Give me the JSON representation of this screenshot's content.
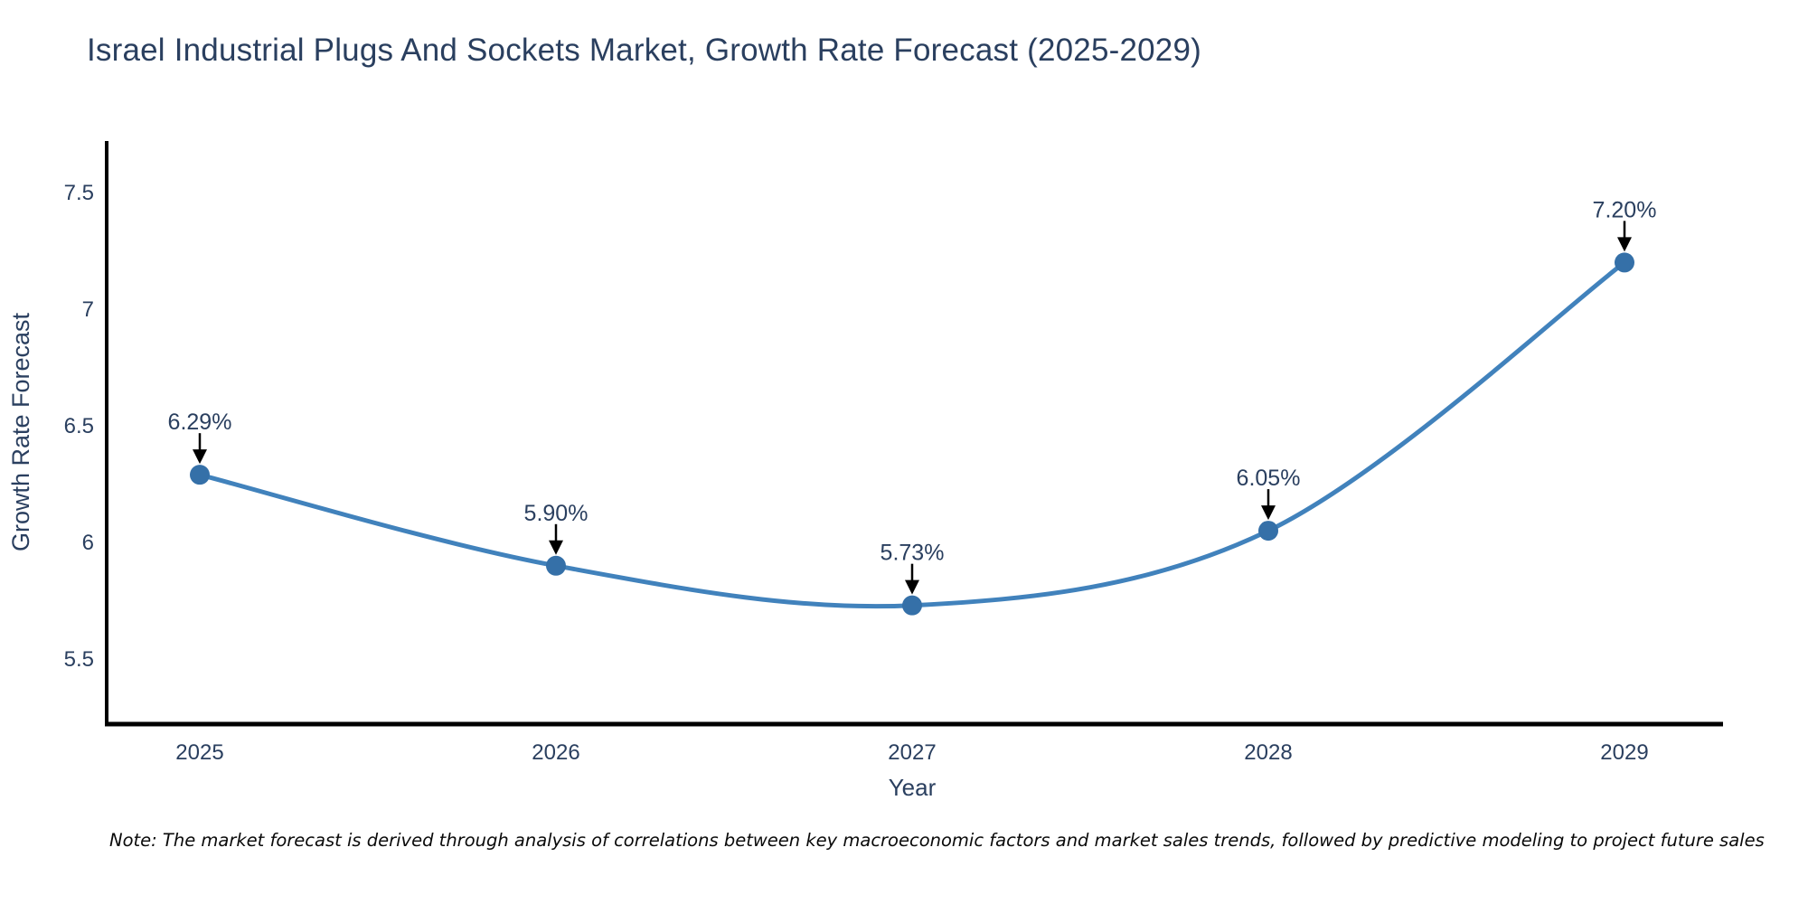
{
  "title": "Israel Industrial Plugs And Sockets Market, Growth Rate Forecast (2025-2029)",
  "note": "Note: The market forecast is derived through analysis of correlations between key macroeconomic factors and market sales trends, followed by predictive modeling to project future sales",
  "chart_data": {
    "type": "line",
    "title": "Israel Industrial Plugs And Sockets Market, Growth Rate Forecast (2025-2029)",
    "xlabel": "Year",
    "ylabel": "Growth Rate Forecast",
    "categories": [
      "2025",
      "2026",
      "2027",
      "2028",
      "2029"
    ],
    "values": [
      6.29,
      5.9,
      5.73,
      6.05,
      7.2
    ],
    "point_labels": [
      "6.29%",
      "5.90%",
      "5.73%",
      "6.05%",
      "7.20%"
    ],
    "ytick_labels": [
      "5.5",
      "6",
      "6.5",
      "7",
      "7.5"
    ],
    "ytick_values": [
      5.5,
      6.0,
      6.5,
      7.0,
      7.5
    ],
    "ylim": [
      5.21,
      7.72
    ],
    "line_shape": "spline",
    "grid": false,
    "legend": false,
    "annotations": "down-arrows from labels to points",
    "colors": {
      "line": "#4182bc",
      "marker": "#3570a8",
      "text": "#2a3f5f",
      "axis": "#000000",
      "arrow": "#000000",
      "background": "#ffffff"
    }
  }
}
